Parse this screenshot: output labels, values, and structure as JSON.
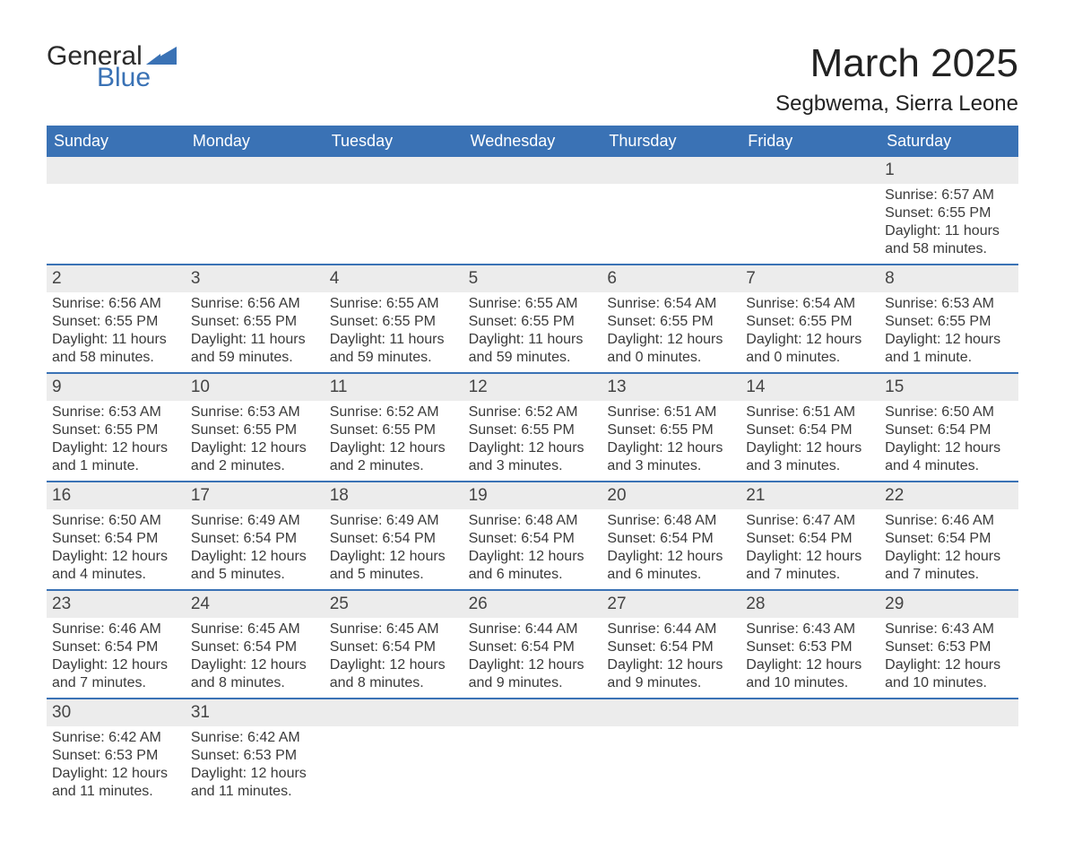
{
  "branding": {
    "logo_word_1": "General",
    "logo_word_2": "Blue",
    "logo_color_text": "#2b2b2b",
    "logo_color_blue": "#3a72b5"
  },
  "title": {
    "month_year": "March 2025",
    "location": "Segbwema, Sierra Leone"
  },
  "styling": {
    "header_bg": "#3a72b5",
    "header_text": "#ffffff",
    "daynum_bg": "#ececec",
    "week_border": "#3a72b5",
    "body_bg": "#ffffff",
    "text_color": "#3a3a3a",
    "title_fontsize_pt": 33,
    "location_fontsize_pt": 18,
    "header_fontsize_pt": 14,
    "daynum_fontsize_pt": 14,
    "body_fontsize_pt": 12
  },
  "calendar": {
    "weekday_headers": [
      "Sunday",
      "Monday",
      "Tuesday",
      "Wednesday",
      "Thursday",
      "Friday",
      "Saturday"
    ],
    "first_weekday_index": 6,
    "days": [
      {
        "n": 1,
        "sunrise": "Sunrise: 6:57 AM",
        "sunset": "Sunset: 6:55 PM",
        "daylight": "Daylight: 11 hours and 58 minutes."
      },
      {
        "n": 2,
        "sunrise": "Sunrise: 6:56 AM",
        "sunset": "Sunset: 6:55 PM",
        "daylight": "Daylight: 11 hours and 58 minutes."
      },
      {
        "n": 3,
        "sunrise": "Sunrise: 6:56 AM",
        "sunset": "Sunset: 6:55 PM",
        "daylight": "Daylight: 11 hours and 59 minutes."
      },
      {
        "n": 4,
        "sunrise": "Sunrise: 6:55 AM",
        "sunset": "Sunset: 6:55 PM",
        "daylight": "Daylight: 11 hours and 59 minutes."
      },
      {
        "n": 5,
        "sunrise": "Sunrise: 6:55 AM",
        "sunset": "Sunset: 6:55 PM",
        "daylight": "Daylight: 11 hours and 59 minutes."
      },
      {
        "n": 6,
        "sunrise": "Sunrise: 6:54 AM",
        "sunset": "Sunset: 6:55 PM",
        "daylight": "Daylight: 12 hours and 0 minutes."
      },
      {
        "n": 7,
        "sunrise": "Sunrise: 6:54 AM",
        "sunset": "Sunset: 6:55 PM",
        "daylight": "Daylight: 12 hours and 0 minutes."
      },
      {
        "n": 8,
        "sunrise": "Sunrise: 6:53 AM",
        "sunset": "Sunset: 6:55 PM",
        "daylight": "Daylight: 12 hours and 1 minute."
      },
      {
        "n": 9,
        "sunrise": "Sunrise: 6:53 AM",
        "sunset": "Sunset: 6:55 PM",
        "daylight": "Daylight: 12 hours and 1 minute."
      },
      {
        "n": 10,
        "sunrise": "Sunrise: 6:53 AM",
        "sunset": "Sunset: 6:55 PM",
        "daylight": "Daylight: 12 hours and 2 minutes."
      },
      {
        "n": 11,
        "sunrise": "Sunrise: 6:52 AM",
        "sunset": "Sunset: 6:55 PM",
        "daylight": "Daylight: 12 hours and 2 minutes."
      },
      {
        "n": 12,
        "sunrise": "Sunrise: 6:52 AM",
        "sunset": "Sunset: 6:55 PM",
        "daylight": "Daylight: 12 hours and 3 minutes."
      },
      {
        "n": 13,
        "sunrise": "Sunrise: 6:51 AM",
        "sunset": "Sunset: 6:55 PM",
        "daylight": "Daylight: 12 hours and 3 minutes."
      },
      {
        "n": 14,
        "sunrise": "Sunrise: 6:51 AM",
        "sunset": "Sunset: 6:54 PM",
        "daylight": "Daylight: 12 hours and 3 minutes."
      },
      {
        "n": 15,
        "sunrise": "Sunrise: 6:50 AM",
        "sunset": "Sunset: 6:54 PM",
        "daylight": "Daylight: 12 hours and 4 minutes."
      },
      {
        "n": 16,
        "sunrise": "Sunrise: 6:50 AM",
        "sunset": "Sunset: 6:54 PM",
        "daylight": "Daylight: 12 hours and 4 minutes."
      },
      {
        "n": 17,
        "sunrise": "Sunrise: 6:49 AM",
        "sunset": "Sunset: 6:54 PM",
        "daylight": "Daylight: 12 hours and 5 minutes."
      },
      {
        "n": 18,
        "sunrise": "Sunrise: 6:49 AM",
        "sunset": "Sunset: 6:54 PM",
        "daylight": "Daylight: 12 hours and 5 minutes."
      },
      {
        "n": 19,
        "sunrise": "Sunrise: 6:48 AM",
        "sunset": "Sunset: 6:54 PM",
        "daylight": "Daylight: 12 hours and 6 minutes."
      },
      {
        "n": 20,
        "sunrise": "Sunrise: 6:48 AM",
        "sunset": "Sunset: 6:54 PM",
        "daylight": "Daylight: 12 hours and 6 minutes."
      },
      {
        "n": 21,
        "sunrise": "Sunrise: 6:47 AM",
        "sunset": "Sunset: 6:54 PM",
        "daylight": "Daylight: 12 hours and 7 minutes."
      },
      {
        "n": 22,
        "sunrise": "Sunrise: 6:46 AM",
        "sunset": "Sunset: 6:54 PM",
        "daylight": "Daylight: 12 hours and 7 minutes."
      },
      {
        "n": 23,
        "sunrise": "Sunrise: 6:46 AM",
        "sunset": "Sunset: 6:54 PM",
        "daylight": "Daylight: 12 hours and 7 minutes."
      },
      {
        "n": 24,
        "sunrise": "Sunrise: 6:45 AM",
        "sunset": "Sunset: 6:54 PM",
        "daylight": "Daylight: 12 hours and 8 minutes."
      },
      {
        "n": 25,
        "sunrise": "Sunrise: 6:45 AM",
        "sunset": "Sunset: 6:54 PM",
        "daylight": "Daylight: 12 hours and 8 minutes."
      },
      {
        "n": 26,
        "sunrise": "Sunrise: 6:44 AM",
        "sunset": "Sunset: 6:54 PM",
        "daylight": "Daylight: 12 hours and 9 minutes."
      },
      {
        "n": 27,
        "sunrise": "Sunrise: 6:44 AM",
        "sunset": "Sunset: 6:54 PM",
        "daylight": "Daylight: 12 hours and 9 minutes."
      },
      {
        "n": 28,
        "sunrise": "Sunrise: 6:43 AM",
        "sunset": "Sunset: 6:53 PM",
        "daylight": "Daylight: 12 hours and 10 minutes."
      },
      {
        "n": 29,
        "sunrise": "Sunrise: 6:43 AM",
        "sunset": "Sunset: 6:53 PM",
        "daylight": "Daylight: 12 hours and 10 minutes."
      },
      {
        "n": 30,
        "sunrise": "Sunrise: 6:42 AM",
        "sunset": "Sunset: 6:53 PM",
        "daylight": "Daylight: 12 hours and 11 minutes."
      },
      {
        "n": 31,
        "sunrise": "Sunrise: 6:42 AM",
        "sunset": "Sunset: 6:53 PM",
        "daylight": "Daylight: 12 hours and 11 minutes."
      }
    ]
  }
}
